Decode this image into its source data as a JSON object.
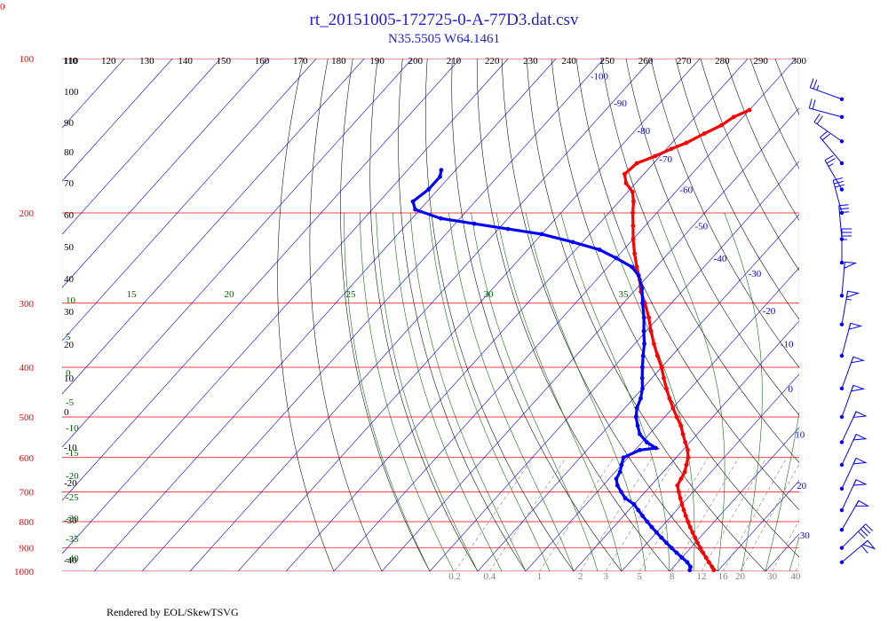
{
  "header": {
    "title": "rt_20151005-172725-0-A-77D3.dat.csv",
    "subtitle": "N35.5505 W64.1461",
    "corner": "0"
  },
  "footer": {
    "text": "Rendered by EOL/SkewTSVG"
  },
  "colors": {
    "temperature": "#ff0000",
    "dewpoint": "#0000ff",
    "isobar": "#ff0000",
    "isotherm": "#0000ff",
    "dry_adiabat": "#000000",
    "moist_adiabat": "#006400",
    "mixing_ratio": "#808080",
    "wind": "#0000ff"
  },
  "chart_data": {
    "type": "scatter",
    "title": "rt_20151005-172725-0-A-77D3.dat.csv",
    "subtitle": "N35.5505 W64.1461",
    "pressure_range": [
      100,
      1000
    ],
    "pressure_labels": [
      "100",
      "200",
      "300",
      "400",
      "500",
      "600",
      "700",
      "800",
      "900",
      "1000"
    ],
    "isotherm_labels": [
      -100,
      -90,
      -80,
      -70,
      -60,
      -50,
      -40,
      -30,
      -20,
      -10,
      0,
      10,
      20,
      30
    ],
    "dry_adiabat_top_labels": [
      110,
      120,
      130,
      140,
      150,
      160,
      170,
      180,
      190,
      200,
      210,
      220,
      230,
      240,
      250,
      260,
      270,
      280,
      290,
      300
    ],
    "dry_adiabat_left_labels": [
      110,
      100,
      90,
      80,
      70,
      60,
      50,
      40,
      30,
      20,
      10,
      0,
      -10,
      -20,
      -30,
      -40
    ],
    "moist_adiabat_left_labels": [
      10,
      5,
      0,
      -5,
      -10,
      -15,
      -20,
      -25,
      -30,
      -35,
      -40
    ],
    "moist_adiabat_top_labels": [
      15,
      20,
      25,
      30,
      35
    ],
    "mixing_ratio_labels": [
      "0.2",
      "0.4",
      "1",
      "2",
      "3",
      "5",
      "8",
      "12",
      "16",
      "20",
      "30",
      "40"
    ],
    "series": [
      {
        "name": "Temperature",
        "points": [
          {
            "p": 126,
            "t": -60
          },
          {
            "p": 130,
            "t": -62
          },
          {
            "p": 135,
            "t": -63
          },
          {
            "p": 140,
            "t": -65
          },
          {
            "p": 146,
            "t": -67
          },
          {
            "p": 150,
            "t": -69
          },
          {
            "p": 155,
            "t": -71
          },
          {
            "p": 160,
            "t": -73.5
          },
          {
            "p": 168,
            "t": -74
          },
          {
            "p": 175,
            "t": -72
          },
          {
            "p": 182,
            "t": -69
          },
          {
            "p": 190,
            "t": -67
          },
          {
            "p": 200,
            "t": -65
          },
          {
            "p": 212,
            "t": -62.5
          },
          {
            "p": 225,
            "t": -60
          },
          {
            "p": 240,
            "t": -57
          },
          {
            "p": 255,
            "t": -54
          },
          {
            "p": 270,
            "t": -51
          },
          {
            "p": 285,
            "t": -48.5
          },
          {
            "p": 300,
            "t": -45.5
          },
          {
            "p": 320,
            "t": -42
          },
          {
            "p": 340,
            "t": -39
          },
          {
            "p": 360,
            "t": -36
          },
          {
            "p": 380,
            "t": -33
          },
          {
            "p": 400,
            "t": -30
          },
          {
            "p": 420,
            "t": -27.5
          },
          {
            "p": 440,
            "t": -25
          },
          {
            "p": 460,
            "t": -22.5
          },
          {
            "p": 480,
            "t": -20
          },
          {
            "p": 500,
            "t": -17.5
          },
          {
            "p": 520,
            "t": -15
          },
          {
            "p": 540,
            "t": -13
          },
          {
            "p": 560,
            "t": -11
          },
          {
            "p": 580,
            "t": -9
          },
          {
            "p": 600,
            "t": -7.5
          },
          {
            "p": 620,
            "t": -6.5
          },
          {
            "p": 640,
            "t": -5.5
          },
          {
            "p": 660,
            "t": -5
          },
          {
            "p": 680,
            "t": -4.5
          },
          {
            "p": 700,
            "t": -3
          },
          {
            "p": 720,
            "t": -1.5
          },
          {
            "p": 740,
            "t": 0
          },
          {
            "p": 760,
            "t": 1.5
          },
          {
            "p": 780,
            "t": 3
          },
          {
            "p": 800,
            "t": 4.5
          },
          {
            "p": 820,
            "t": 6
          },
          {
            "p": 840,
            "t": 7.5
          },
          {
            "p": 860,
            "t": 9
          },
          {
            "p": 880,
            "t": 10.5
          },
          {
            "p": 900,
            "t": 12
          },
          {
            "p": 920,
            "t": 13.5
          },
          {
            "p": 940,
            "t": 15
          },
          {
            "p": 960,
            "t": 16.5
          },
          {
            "p": 980,
            "t": 18
          },
          {
            "p": 995,
            "t": 19
          }
        ]
      },
      {
        "name": "Dewpoint",
        "points": [
          {
            "p": 165,
            "t": -113
          },
          {
            "p": 170,
            "t": -112
          },
          {
            "p": 180,
            "t": -112
          },
          {
            "p": 190,
            "t": -113
          },
          {
            "p": 197,
            "t": -111
          },
          {
            "p": 205,
            "t": -104
          },
          {
            "p": 210,
            "t": -96
          },
          {
            "p": 215,
            "t": -88
          },
          {
            "p": 220,
            "t": -80
          },
          {
            "p": 228,
            "t": -72
          },
          {
            "p": 236,
            "t": -65
          },
          {
            "p": 245,
            "t": -60
          },
          {
            "p": 255,
            "t": -55
          },
          {
            "p": 265,
            "t": -52
          },
          {
            "p": 280,
            "t": -49
          },
          {
            "p": 300,
            "t": -46
          },
          {
            "p": 320,
            "t": -43
          },
          {
            "p": 340,
            "t": -40.5
          },
          {
            "p": 360,
            "t": -38
          },
          {
            "p": 380,
            "t": -36
          },
          {
            "p": 400,
            "t": -34
          },
          {
            "p": 420,
            "t": -32
          },
          {
            "p": 440,
            "t": -30
          },
          {
            "p": 460,
            "t": -28.5
          },
          {
            "p": 480,
            "t": -27.5
          },
          {
            "p": 500,
            "t": -26
          },
          {
            "p": 520,
            "t": -24
          },
          {
            "p": 540,
            "t": -22
          },
          {
            "p": 560,
            "t": -19
          },
          {
            "p": 575,
            "t": -16
          },
          {
            "p": 580,
            "t": -19
          },
          {
            "p": 600,
            "t": -21
          },
          {
            "p": 620,
            "t": -20
          },
          {
            "p": 640,
            "t": -19
          },
          {
            "p": 660,
            "t": -18.5
          },
          {
            "p": 680,
            "t": -17
          },
          {
            "p": 700,
            "t": -15
          },
          {
            "p": 720,
            "t": -13
          },
          {
            "p": 740,
            "t": -10
          },
          {
            "p": 760,
            "t": -8
          },
          {
            "p": 780,
            "t": -6
          },
          {
            "p": 800,
            "t": -4
          },
          {
            "p": 820,
            "t": -2
          },
          {
            "p": 840,
            "t": 0
          },
          {
            "p": 860,
            "t": 2
          },
          {
            "p": 880,
            "t": 4
          },
          {
            "p": 900,
            "t": 6
          },
          {
            "p": 920,
            "t": 8
          },
          {
            "p": 940,
            "t": 10
          },
          {
            "p": 960,
            "t": 12
          },
          {
            "p": 980,
            "t": 13.5
          },
          {
            "p": 995,
            "t": 14
          }
        ]
      }
    ],
    "wind_barbs": [
      {
        "p": 120,
        "dir": 290,
        "speed_kt": 25
      },
      {
        "p": 130,
        "dir": 285,
        "speed_kt": 20
      },
      {
        "p": 145,
        "dir": 305,
        "speed_kt": 20
      },
      {
        "p": 160,
        "dir": 320,
        "speed_kt": 20
      },
      {
        "p": 180,
        "dir": 330,
        "speed_kt": 25
      },
      {
        "p": 200,
        "dir": 345,
        "speed_kt": 30
      },
      {
        "p": 225,
        "dir": 355,
        "speed_kt": 30
      },
      {
        "p": 250,
        "dir": 0,
        "speed_kt": 35
      },
      {
        "p": 290,
        "dir": 5,
        "speed_kt": 50
      },
      {
        "p": 330,
        "dir": 10,
        "speed_kt": 55
      },
      {
        "p": 380,
        "dir": 15,
        "speed_kt": 50
      },
      {
        "p": 440,
        "dir": 20,
        "speed_kt": 50
      },
      {
        "p": 500,
        "dir": 20,
        "speed_kt": 50
      },
      {
        "p": 560,
        "dir": 25,
        "speed_kt": 50
      },
      {
        "p": 620,
        "dir": 25,
        "speed_kt": 50
      },
      {
        "p": 690,
        "dir": 25,
        "speed_kt": 50
      },
      {
        "p": 760,
        "dir": 25,
        "speed_kt": 50
      },
      {
        "p": 830,
        "dir": 30,
        "speed_kt": 50
      },
      {
        "p": 900,
        "dir": 45,
        "speed_kt": 40
      },
      {
        "p": 960,
        "dir": 50,
        "speed_kt": 60
      }
    ]
  }
}
